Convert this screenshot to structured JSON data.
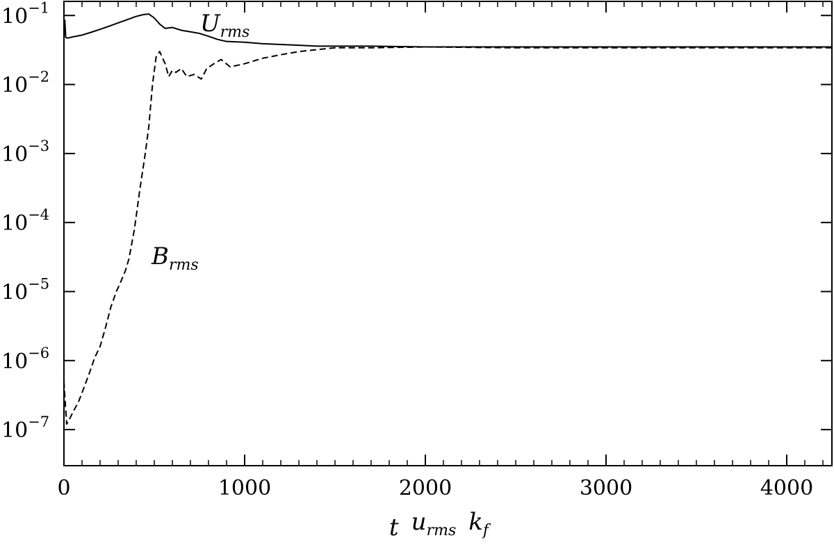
{
  "chart_data": {
    "type": "line",
    "xlabel": {
      "parts": [
        {
          "text": "t",
          "italic": true,
          "sub": ""
        },
        {
          "text": "u",
          "italic": true,
          "sub": "rms"
        },
        {
          "text": "k",
          "italic": true,
          "sub": "f"
        }
      ]
    },
    "ylabel": "",
    "xlim": [
      0,
      4250
    ],
    "ylim": [
      3e-08,
      0.16
    ],
    "yscale": "log",
    "grid": false,
    "x_ticks": [
      {
        "value": 0,
        "label": "0"
      },
      {
        "value": 1000,
        "label": "1000"
      },
      {
        "value": 2000,
        "label": "2000"
      },
      {
        "value": 3000,
        "label": "3000"
      },
      {
        "value": 4000,
        "label": "4000"
      }
    ],
    "x_minor_step": 100,
    "y_ticks": [
      {
        "value": 0.1,
        "base": "10",
        "exp": "−1"
      },
      {
        "value": 0.01,
        "base": "10",
        "exp": "−2"
      },
      {
        "value": 0.001,
        "base": "10",
        "exp": "−3"
      },
      {
        "value": 0.0001,
        "base": "10",
        "exp": "−4"
      },
      {
        "value": 1e-05,
        "base": "10",
        "exp": "−5"
      },
      {
        "value": 1e-06,
        "base": "10",
        "exp": "−6"
      },
      {
        "value": 1e-07,
        "base": "10",
        "exp": "−7"
      }
    ],
    "series": [
      {
        "name": "U_rms",
        "label_main": "U",
        "label_sub": "rms",
        "style": "solid",
        "color": "#000000",
        "x": [
          0,
          5,
          10,
          20,
          50,
          100,
          150,
          200,
          250,
          300,
          350,
          400,
          440,
          470,
          500,
          530,
          560,
          600,
          650,
          700,
          750,
          800,
          850,
          900,
          1000,
          1100,
          1200,
          1300,
          1400,
          1500,
          1700,
          2000,
          2500,
          3000,
          3500,
          4000,
          4250
        ],
        "y": [
          0.047,
          0.085,
          0.048,
          0.047,
          0.049,
          0.052,
          0.057,
          0.063,
          0.07,
          0.078,
          0.087,
          0.097,
          0.103,
          0.105,
          0.092,
          0.075,
          0.065,
          0.067,
          0.061,
          0.058,
          0.055,
          0.05,
          0.045,
          0.042,
          0.041,
          0.039,
          0.038,
          0.037,
          0.036,
          0.036,
          0.036,
          0.035,
          0.035,
          0.035,
          0.035,
          0.035,
          0.035
        ]
      },
      {
        "name": "B_rms",
        "label_main": "B",
        "label_sub": "rms",
        "style": "dashed",
        "color": "#000000",
        "x": [
          0,
          5,
          15,
          30,
          50,
          80,
          110,
          140,
          170,
          200,
          230,
          260,
          290,
          310,
          340,
          360,
          390,
          420,
          450,
          470,
          490,
          510,
          530,
          560,
          580,
          600,
          620,
          650,
          680,
          720,
          760,
          790,
          830,
          870,
          920,
          1000,
          1100,
          1200,
          1300,
          1400,
          1500,
          1700,
          2000,
          2500,
          3000,
          3500,
          4000,
          4250
        ],
        "y": [
          5e-07,
          3e-07,
          1.2e-07,
          1.4e-07,
          1.8e-07,
          2.5e-07,
          4e-07,
          6.5e-07,
          1.1e-06,
          1.6e-06,
          3e-06,
          6e-06,
          1e-05,
          1.3e-05,
          2e-05,
          3e-05,
          8e-05,
          0.0003,
          0.001,
          0.0025,
          0.01,
          0.025,
          0.03,
          0.02,
          0.013,
          0.016,
          0.015,
          0.017,
          0.013,
          0.014,
          0.012,
          0.017,
          0.02,
          0.023,
          0.018,
          0.02,
          0.024,
          0.027,
          0.03,
          0.032,
          0.034,
          0.034,
          0.035,
          0.034,
          0.034,
          0.034,
          0.034,
          0.034
        ]
      }
    ]
  }
}
